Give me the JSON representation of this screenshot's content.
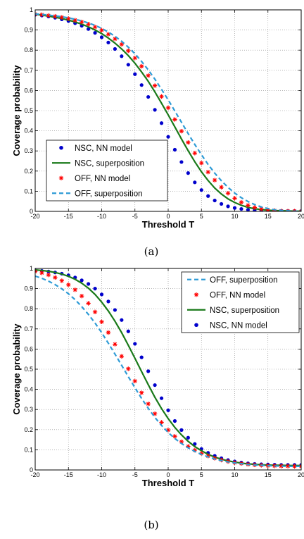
{
  "chart_data": [
    {
      "type": "line",
      "caption": "(a)",
      "xlabel": "Threshold T",
      "ylabel": "Coverage probability",
      "xlim": [
        -20,
        20
      ],
      "ylim": [
        0,
        1
      ],
      "xticks": [
        -20,
        -15,
        -10,
        -5,
        0,
        5,
        10,
        15,
        20
      ],
      "yticks": [
        0,
        0.1,
        0.2,
        0.3,
        0.4,
        0.5,
        0.6,
        0.7,
        0.8,
        0.9,
        1
      ],
      "grid": true,
      "legend_position": "lower-left",
      "legend_order": [
        0,
        1,
        2,
        3
      ],
      "series": [
        {
          "name": "NSC, NN model",
          "style": "dots",
          "color": "#0000cc",
          "x": [
            -20,
            -19,
            -18,
            -17,
            -16,
            -15,
            -14,
            -13,
            -12,
            -11,
            -10,
            -9,
            -8,
            -7,
            -6,
            -5,
            -4,
            -3,
            -2,
            -1,
            0,
            1,
            2,
            3,
            4,
            5,
            6,
            7,
            8,
            9,
            10,
            11,
            12,
            13,
            14,
            15,
            16,
            17,
            18,
            19,
            20
          ],
          "y": [
            0.976,
            0.972,
            0.967,
            0.961,
            0.953,
            0.945,
            0.934,
            0.921,
            0.905,
            0.886,
            0.864,
            0.838,
            0.806,
            0.77,
            0.728,
            0.681,
            0.627,
            0.568,
            0.504,
            0.438,
            0.37,
            0.306,
            0.245,
            0.19,
            0.144,
            0.106,
            0.076,
            0.054,
            0.037,
            0.025,
            0.017,
            0.012,
            0.008,
            0.005,
            0.004,
            0.003,
            0.002,
            0.002,
            0.001,
            0.001,
            0.001
          ]
        },
        {
          "name": "NSC, superposition",
          "style": "solid",
          "color": "#1a7a1a",
          "x": [
            -20,
            -19,
            -18,
            -17,
            -16,
            -15,
            -14,
            -13,
            -12,
            -11,
            -10,
            -9,
            -8,
            -7,
            -6,
            -5,
            -4,
            -3,
            -2,
            -1,
            0,
            1,
            2,
            3,
            4,
            5,
            6,
            7,
            8,
            9,
            10,
            11,
            12,
            13,
            14,
            15,
            16,
            17,
            18,
            19,
            20
          ],
          "y": [
            0.978,
            0.974,
            0.969,
            0.963,
            0.957,
            0.949,
            0.94,
            0.929,
            0.916,
            0.9,
            0.882,
            0.86,
            0.835,
            0.806,
            0.773,
            0.735,
            0.692,
            0.645,
            0.593,
            0.537,
            0.479,
            0.419,
            0.359,
            0.301,
            0.246,
            0.196,
            0.153,
            0.116,
            0.086,
            0.062,
            0.044,
            0.03,
            0.02,
            0.013,
            0.009,
            0.006,
            0.004,
            0.003,
            0.002,
            0.001,
            0.001
          ]
        },
        {
          "name": "OFF, NN model",
          "style": "stars",
          "color": "#ff0000",
          "x": [
            -20,
            -19,
            -18,
            -17,
            -16,
            -15,
            -14,
            -13,
            -12,
            -11,
            -10,
            -9,
            -8,
            -7,
            -6,
            -5,
            -4,
            -3,
            -2,
            -1,
            0,
            1,
            2,
            3,
            4,
            5,
            6,
            7,
            8,
            9,
            10,
            11,
            12,
            13,
            14,
            15,
            16,
            17,
            18,
            19,
            20
          ],
          "y": [
            0.979,
            0.976,
            0.972,
            0.968,
            0.963,
            0.957,
            0.949,
            0.94,
            0.929,
            0.915,
            0.899,
            0.879,
            0.856,
            0.829,
            0.797,
            0.761,
            0.72,
            0.674,
            0.624,
            0.57,
            0.514,
            0.456,
            0.398,
            0.342,
            0.289,
            0.24,
            0.195,
            0.155,
            0.12,
            0.09,
            0.065,
            0.045,
            0.03,
            0.019,
            0.012,
            0.007,
            0.004,
            0.002,
            0.001,
            0.001,
            0.0
          ]
        },
        {
          "name": "OFF, superposition",
          "style": "dashed",
          "color": "#2e9bd6",
          "x": [
            -20,
            -19,
            -18,
            -17,
            -16,
            -15,
            -14,
            -13,
            -12,
            -11,
            -10,
            -9,
            -8,
            -7,
            -6,
            -5,
            -4,
            -3,
            -2,
            -1,
            0,
            1,
            2,
            3,
            4,
            5,
            6,
            7,
            8,
            9,
            10,
            11,
            12,
            13,
            14,
            15,
            16,
            17,
            18,
            19,
            20
          ],
          "y": [
            0.98,
            0.977,
            0.974,
            0.97,
            0.966,
            0.96,
            0.953,
            0.945,
            0.935,
            0.923,
            0.908,
            0.89,
            0.869,
            0.844,
            0.815,
            0.782,
            0.744,
            0.702,
            0.656,
            0.606,
            0.553,
            0.498,
            0.442,
            0.386,
            0.332,
            0.281,
            0.233,
            0.19,
            0.152,
            0.119,
            0.091,
            0.068,
            0.049,
            0.034,
            0.022,
            0.014,
            0.008,
            0.005,
            0.003,
            0.001,
            0.001
          ]
        }
      ]
    },
    {
      "type": "line",
      "caption": "(b)",
      "xlabel": "Threshold T",
      "ylabel": "Coverage probability",
      "xlim": [
        -20,
        20
      ],
      "ylim": [
        0,
        1
      ],
      "xticks": [
        -20,
        -15,
        -10,
        -5,
        0,
        5,
        10,
        15,
        20
      ],
      "yticks": [
        0,
        0.1,
        0.2,
        0.3,
        0.4,
        0.5,
        0.6,
        0.7,
        0.8,
        0.9,
        1
      ],
      "grid": true,
      "legend_position": "top-right",
      "legend_order": [
        3,
        2,
        1,
        0
      ],
      "series": [
        {
          "name": "NSC, NN model",
          "style": "dots",
          "color": "#0000cc",
          "x": [
            -20,
            -19,
            -18,
            -17,
            -16,
            -15,
            -14,
            -13,
            -12,
            -11,
            -10,
            -9,
            -8,
            -7,
            -6,
            -5,
            -4,
            -3,
            -2,
            -1,
            0,
            1,
            2,
            3,
            4,
            5,
            6,
            7,
            8,
            9,
            10,
            11,
            12,
            13,
            14,
            15,
            16,
            17,
            18,
            19,
            20
          ],
          "y": [
            0.99,
            0.988,
            0.985,
            0.98,
            0.974,
            0.966,
            0.955,
            0.941,
            0.923,
            0.9,
            0.871,
            0.836,
            0.794,
            0.744,
            0.688,
            0.626,
            0.559,
            0.49,
            0.421,
            0.356,
            0.296,
            0.243,
            0.198,
            0.16,
            0.129,
            0.104,
            0.085,
            0.07,
            0.058,
            0.049,
            0.042,
            0.037,
            0.033,
            0.03,
            0.028,
            0.027,
            0.026,
            0.025,
            0.025,
            0.025,
            0.025
          ]
        },
        {
          "name": "NSC, superposition",
          "style": "solid",
          "color": "#1a7a1a",
          "x": [
            -20,
            -19,
            -18,
            -17,
            -16,
            -15,
            -14,
            -13,
            -12,
            -11,
            -10,
            -9,
            -8,
            -7,
            -6,
            -5,
            -4,
            -3,
            -2,
            -1,
            0,
            1,
            2,
            3,
            4,
            5,
            6,
            7,
            8,
            9,
            10,
            11,
            12,
            13,
            14,
            15,
            16,
            17,
            18,
            19,
            20
          ],
          "y": [
            0.993,
            0.99,
            0.986,
            0.98,
            0.972,
            0.961,
            0.946,
            0.927,
            0.902,
            0.871,
            0.833,
            0.789,
            0.738,
            0.681,
            0.619,
            0.554,
            0.488,
            0.423,
            0.361,
            0.305,
            0.255,
            0.211,
            0.174,
            0.142,
            0.116,
            0.095,
            0.078,
            0.064,
            0.053,
            0.045,
            0.039,
            0.034,
            0.03,
            0.028,
            0.026,
            0.024,
            0.023,
            0.023,
            0.022,
            0.022,
            0.022
          ]
        },
        {
          "name": "OFF, NN model",
          "style": "stars",
          "color": "#ff0000",
          "x": [
            -20,
            -19,
            -18,
            -17,
            -16,
            -15,
            -14,
            -13,
            -12,
            -11,
            -10,
            -9,
            -8,
            -7,
            -6,
            -5,
            -4,
            -3,
            -2,
            -1,
            0,
            1,
            2,
            3,
            4,
            5,
            6,
            7,
            8,
            9,
            10,
            11,
            12,
            13,
            14,
            15,
            16,
            17,
            18,
            19,
            20
          ],
          "y": [
            0.985,
            0.978,
            0.968,
            0.955,
            0.939,
            0.919,
            0.894,
            0.863,
            0.827,
            0.784,
            0.735,
            0.682,
            0.624,
            0.564,
            0.502,
            0.441,
            0.383,
            0.328,
            0.279,
            0.236,
            0.198,
            0.167,
            0.14,
            0.117,
            0.098,
            0.082,
            0.069,
            0.058,
            0.049,
            0.042,
            0.036,
            0.032,
            0.028,
            0.025,
            0.023,
            0.021,
            0.02,
            0.019,
            0.019,
            0.018,
            0.018
          ]
        },
        {
          "name": "OFF, superposition",
          "style": "dashed",
          "color": "#2e9bd6",
          "x": [
            -20,
            -19,
            -18,
            -17,
            -16,
            -15,
            -14,
            -13,
            -12,
            -11,
            -10,
            -9,
            -8,
            -7,
            -6,
            -5,
            -4,
            -3,
            -2,
            -1,
            0,
            1,
            2,
            3,
            4,
            5,
            6,
            7,
            8,
            9,
            10,
            11,
            12,
            13,
            14,
            15,
            16,
            17,
            18,
            19,
            20
          ],
          "y": [
            0.962,
            0.951,
            0.937,
            0.92,
            0.899,
            0.874,
            0.845,
            0.811,
            0.772,
            0.729,
            0.681,
            0.629,
            0.575,
            0.519,
            0.463,
            0.408,
            0.355,
            0.306,
            0.261,
            0.221,
            0.186,
            0.156,
            0.131,
            0.11,
            0.092,
            0.077,
            0.065,
            0.055,
            0.047,
            0.04,
            0.035,
            0.031,
            0.027,
            0.025,
            0.023,
            0.021,
            0.02,
            0.019,
            0.018,
            0.018,
            0.018
          ]
        }
      ]
    }
  ]
}
